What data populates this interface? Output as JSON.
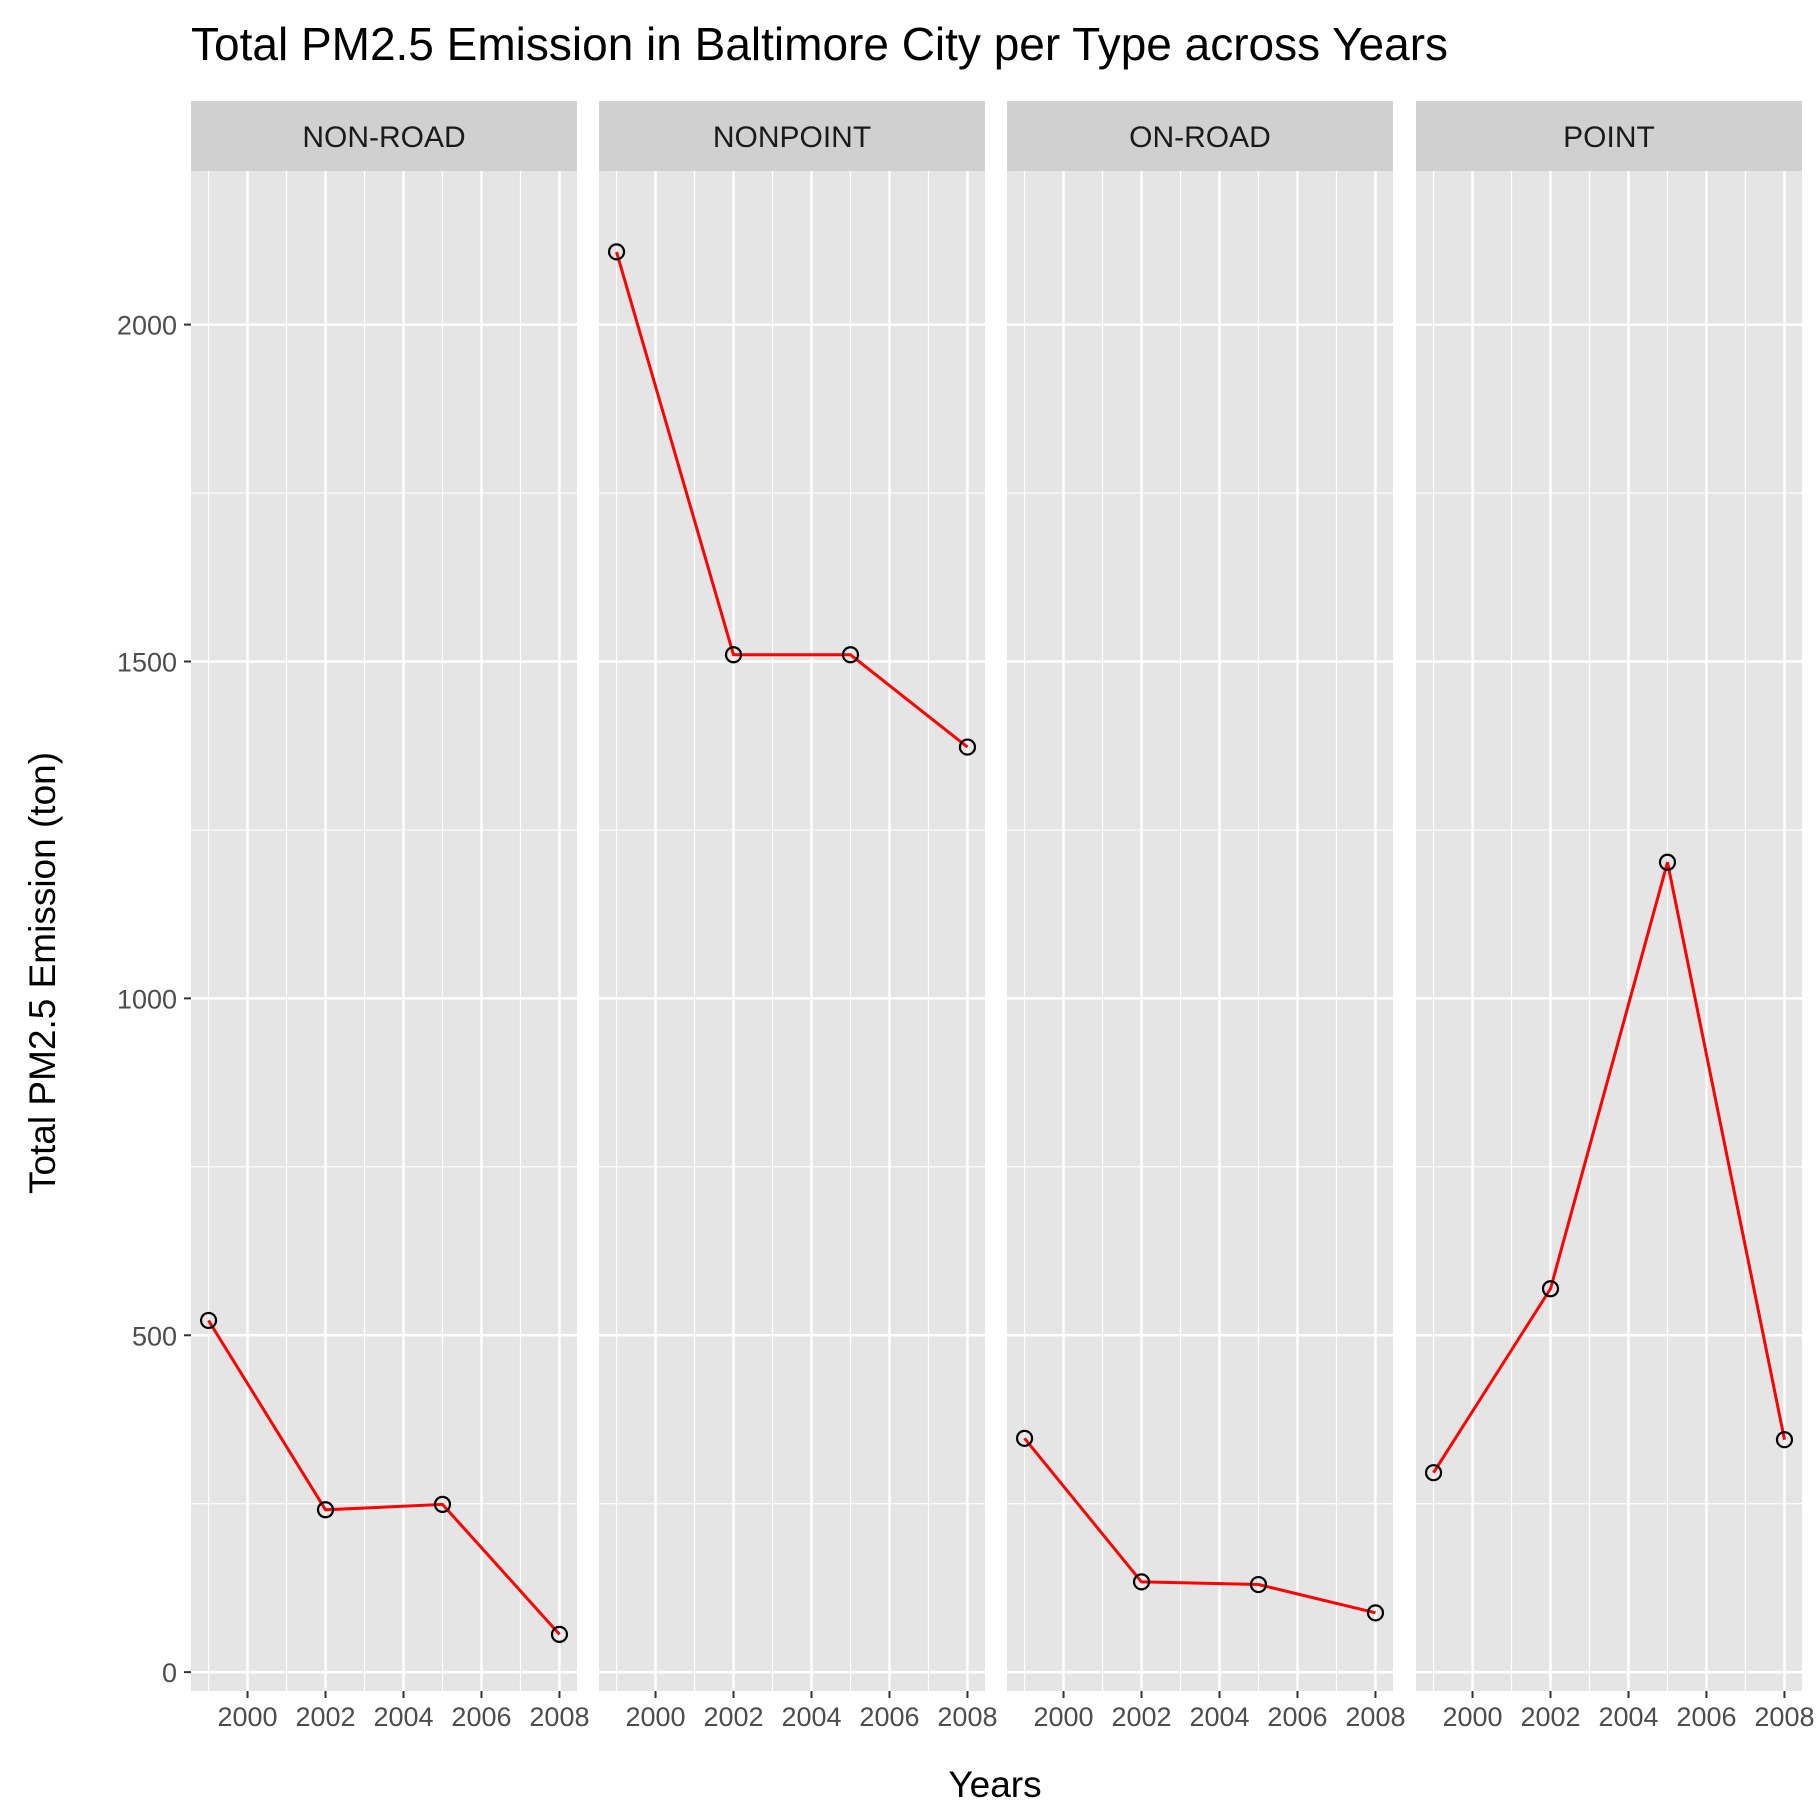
{
  "chart_data": {
    "type": "line",
    "title": "Total PM2.5 Emission in Baltimore City per Type across Years",
    "xlabel": "Years",
    "ylabel": "Total PM2.5 Emission (ton)",
    "facet_by": "type",
    "x": [
      1999,
      2002,
      2005,
      2008
    ],
    "xlim": [
      1998.55,
      2008.45
    ],
    "ylim": [
      -28,
      2228
    ],
    "x_ticks": [
      2000,
      2002,
      2004,
      2006,
      2008
    ],
    "x_tick_labels": [
      "2000",
      "2002",
      "2004",
      "2006",
      "2008"
    ],
    "y_ticks": [
      0,
      500,
      1000,
      1500,
      2000
    ],
    "y_tick_labels": [
      "0",
      "500",
      "1000",
      "1500",
      "2000"
    ],
    "grid": true,
    "line_color": "#ff0000",
    "point_color": "#000000",
    "panel_background": "#e5e5e5",
    "strip_background": "#d0d0d0",
    "facets": [
      {
        "label": "NON-ROAD",
        "values": [
          522,
          241,
          249,
          56
        ]
      },
      {
        "label": "NONPOINT",
        "values": [
          2108,
          1510,
          1510,
          1373
        ]
      },
      {
        "label": "ON-ROAD",
        "values": [
          347,
          134,
          130,
          88
        ]
      },
      {
        "label": "POINT",
        "values": [
          296,
          569,
          1202,
          345
        ]
      }
    ]
  }
}
